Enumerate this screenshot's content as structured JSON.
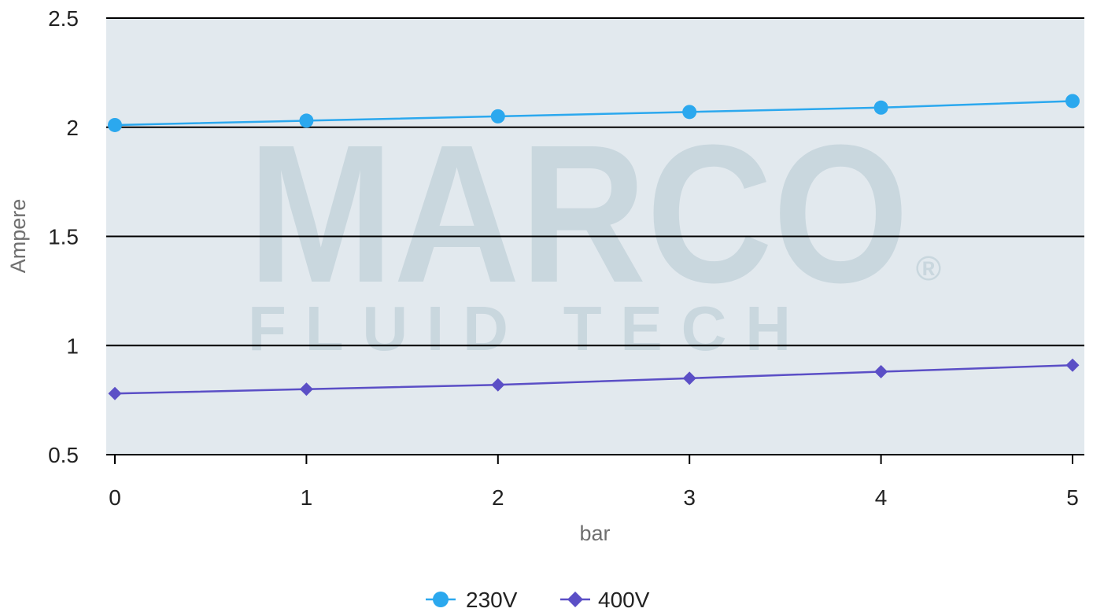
{
  "colors": {
    "plot_bg": "#e2e9ee",
    "series_230": "#2ba8ee",
    "series_400": "#5b4fc6",
    "grid": "#000000"
  },
  "watermark": {
    "brand": "MARCO",
    "sub": "FLUID TECH",
    "mark": "®"
  },
  "chart_data": {
    "type": "line",
    "xlabel": "bar",
    "ylabel": "Ampere",
    "x": [
      0,
      1,
      2,
      3,
      4,
      5
    ],
    "x_tick_labels": [
      "0",
      "1",
      "2",
      "3",
      "4",
      "5"
    ],
    "y_tick_labels": [
      "0.5",
      "1",
      "1.5",
      "2",
      "2.5"
    ],
    "y_ticks": [
      0.5,
      1,
      1.5,
      2,
      2.5
    ],
    "xlim": [
      0,
      5
    ],
    "ylim": [
      0.5,
      2.5
    ],
    "grid": "horizontal",
    "legend_position": "bottom-center",
    "series": [
      {
        "name": "230V",
        "marker": "circle",
        "color": "#2ba8ee",
        "values": [
          2.01,
          2.03,
          2.05,
          2.07,
          2.09,
          2.12
        ]
      },
      {
        "name": "400V",
        "marker": "diamond",
        "color": "#5b4fc6",
        "values": [
          0.78,
          0.8,
          0.82,
          0.85,
          0.88,
          0.91
        ]
      }
    ]
  }
}
